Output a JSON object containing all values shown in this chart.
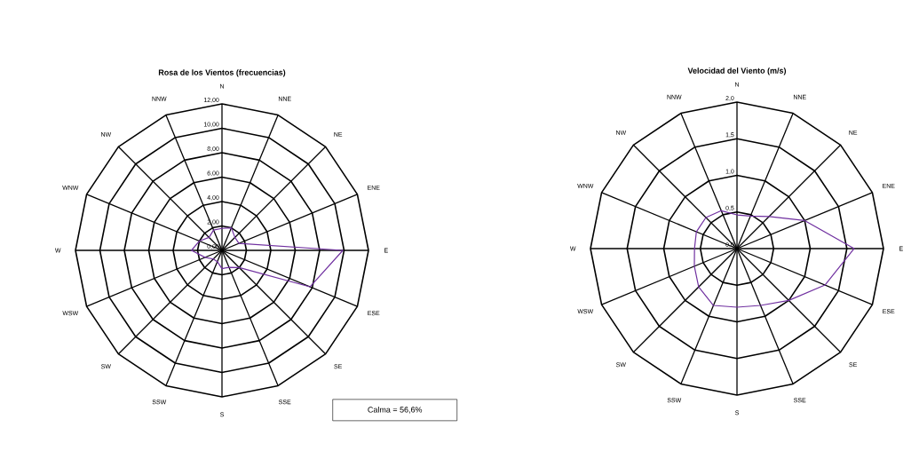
{
  "chart_data": [
    {
      "type": "radar",
      "title": "Rosa de los Vientos (frecuencias)",
      "categories": [
        "N",
        "NNE",
        "NE",
        "ENE",
        "E",
        "ESE",
        "SE",
        "SSE",
        "S",
        "SSW",
        "SW",
        "WSW",
        "W",
        "WNW",
        "NW",
        "NNW"
      ],
      "series": [
        {
          "color": "#7030a0",
          "values": [
            1.8,
            2.0,
            1.5,
            1.5,
            9.9,
            7.8,
            2.0,
            1.5,
            1.5,
            1.0,
            1.0,
            1.5,
            2.5,
            2.0,
            1.5,
            1.8
          ]
        }
      ],
      "ylim": [
        0,
        12
      ],
      "yticks": [
        {
          "value": 0,
          "label": "0,00"
        },
        {
          "value": 2,
          "label": "2,00"
        },
        {
          "value": 4,
          "label": "4,00"
        },
        {
          "value": 6,
          "label": "6,00"
        },
        {
          "value": 8,
          "label": "8,00"
        },
        {
          "value": 10,
          "label": "10,00"
        },
        {
          "value": 12,
          "label": "12,00"
        }
      ],
      "grid": true,
      "annotations": [
        "Calma = 56,6%"
      ]
    },
    {
      "type": "radar",
      "title": "Velocidad del Viento (m/s)",
      "categories": [
        "N",
        "NNE",
        "NE",
        "ENE",
        "E",
        "ESE",
        "SE",
        "SSE",
        "S",
        "SSW",
        "SW",
        "WSW",
        "W",
        "WNW",
        "NW",
        "NNW"
      ],
      "series": [
        {
          "color": "#7030a0",
          "values": [
            0.46,
            0.48,
            0.62,
            1.0,
            1.6,
            1.3,
            1.0,
            0.84,
            0.8,
            0.84,
            0.74,
            0.63,
            0.58,
            0.6,
            0.6,
            0.56
          ]
        }
      ],
      "ylim": [
        0,
        2
      ],
      "yticks": [
        {
          "value": 0,
          "label": "0,0"
        },
        {
          "value": 0.5,
          "label": "0,5"
        },
        {
          "value": 1,
          "label": "1,0"
        },
        {
          "value": 1.5,
          "label": "1,5"
        },
        {
          "value": 2,
          "label": "2,0"
        }
      ],
      "grid": true
    }
  ]
}
